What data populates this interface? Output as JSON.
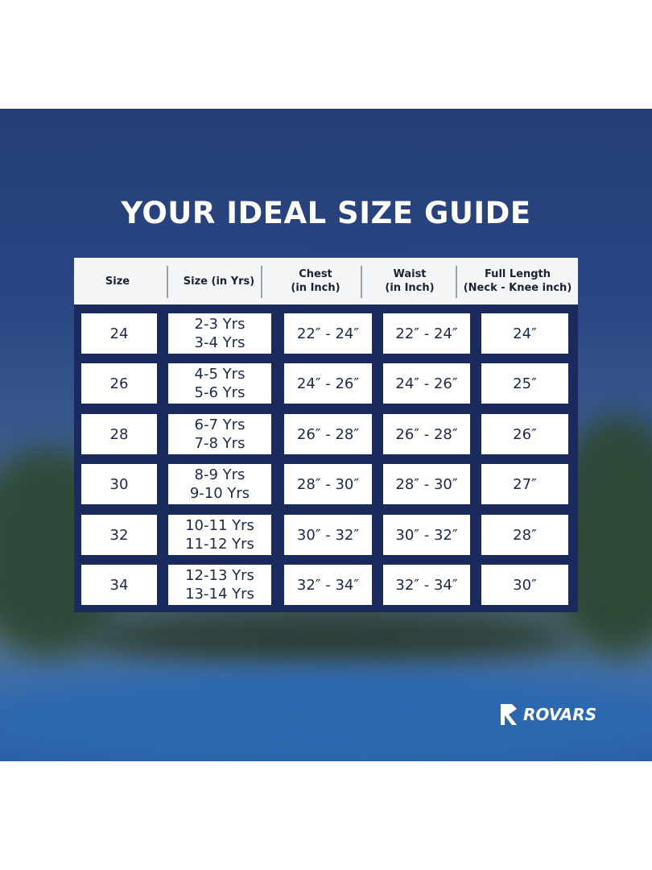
{
  "title": "YOUR IDEAL SIZE GUIDE",
  "table": {
    "headers": [
      "Size",
      "Size (in Yrs)",
      "Chest\n(in Inch)",
      "Waist\n(in Inch)",
      "Full Length\n(Neck - Knee inch)"
    ],
    "rows": [
      [
        "24",
        "2-3 Yrs\n3-4 Yrs",
        "22″ - 24″",
        "22″ - 24″",
        "24″"
      ],
      [
        "26",
        "4-5 Yrs\n5-6 Yrs",
        "24″ - 26″",
        "24″ - 26″",
        "25″"
      ],
      [
        "28",
        "6-7 Yrs\n7-8 Yrs",
        "26″ - 28″",
        "26″ - 28″",
        "26″"
      ],
      [
        "30",
        "8-9 Yrs\n9-10 Yrs",
        "28″ - 30″",
        "28″ - 30″",
        "27″"
      ],
      [
        "32",
        "10-11 Yrs\n11-12 Yrs",
        "30″ - 32″",
        "30″ - 32″",
        "28″"
      ],
      [
        "34",
        "12-13 Yrs\n13-14 Yrs",
        "32″ - 34″",
        "32″ - 34″",
        "30″"
      ]
    ]
  },
  "logo": {
    "text": "ROVARS",
    "icon": "rovars-r-logo"
  },
  "colors": {
    "table_body": "#1b2a5c",
    "header_bg": "#f4f5f7",
    "background_top": "#253e78"
  }
}
